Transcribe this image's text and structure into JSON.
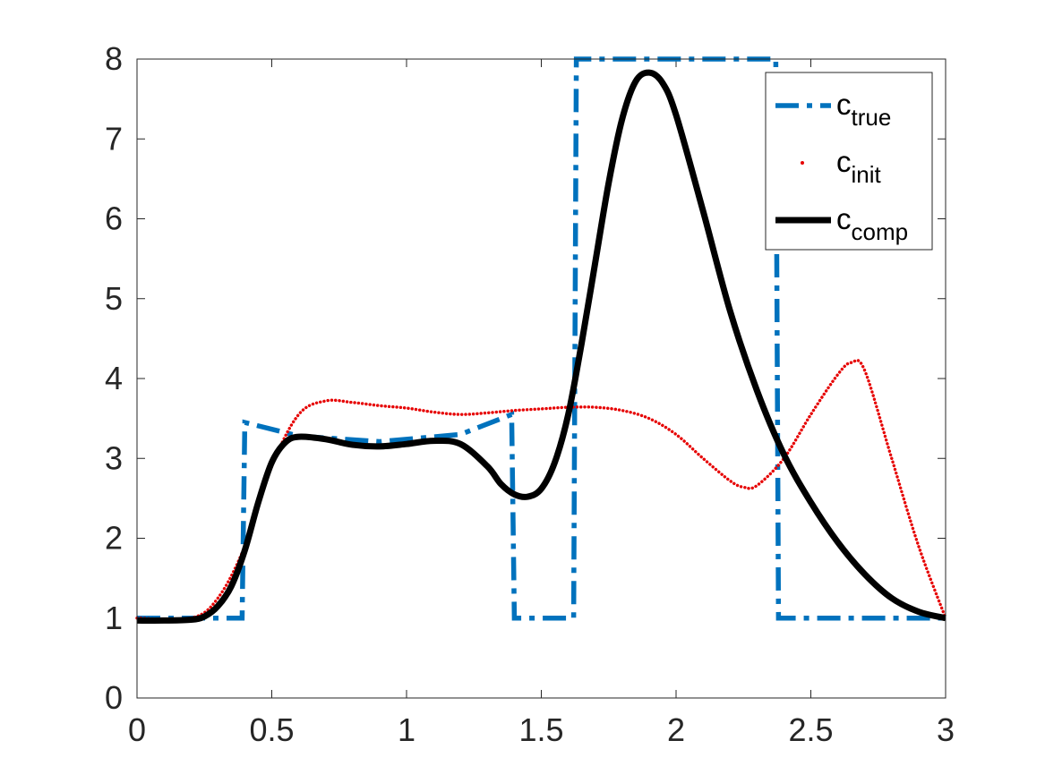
{
  "chart_data": {
    "type": "line",
    "title": "",
    "xlabel": "",
    "ylabel": "",
    "xlim": [
      0,
      3
    ],
    "ylim": [
      0,
      8
    ],
    "xticks": [
      {
        "value": 0,
        "label": "0"
      },
      {
        "value": 0.5,
        "label": "0.5"
      },
      {
        "value": 1,
        "label": "1"
      },
      {
        "value": 1.5,
        "label": "1.5"
      },
      {
        "value": 2,
        "label": "2"
      },
      {
        "value": 2.5,
        "label": "2.5"
      },
      {
        "value": 3,
        "label": "3"
      }
    ],
    "yticks": [
      {
        "value": 0,
        "label": "0"
      },
      {
        "value": 1,
        "label": "1"
      },
      {
        "value": 2,
        "label": "2"
      },
      {
        "value": 3,
        "label": "3"
      },
      {
        "value": 4,
        "label": "4"
      },
      {
        "value": 5,
        "label": "5"
      },
      {
        "value": 6,
        "label": "6"
      },
      {
        "value": 7,
        "label": "7"
      },
      {
        "value": 8,
        "label": "8"
      }
    ],
    "grid": false,
    "box": true,
    "legend_position": "top-right",
    "series": [
      {
        "name": "c_true",
        "legend_base": "c",
        "legend_sub": "true",
        "style": "dash-dot",
        "color": "#0072BD",
        "x": [
          0,
          0.39,
          0.4,
          0.6,
          0.9,
          1.2,
          1.39,
          1.4,
          1.62,
          1.63,
          2.37,
          2.38,
          3
        ],
        "y": [
          1,
          1,
          3.45,
          3.28,
          3.21,
          3.3,
          3.55,
          1,
          1,
          8,
          8,
          1,
          1
        ]
      },
      {
        "name": "c_init",
        "legend_base": "c",
        "legend_sub": "init",
        "style": "dotted",
        "color": "#E60000",
        "x": [
          0,
          0.2,
          0.3,
          0.4,
          0.5,
          0.6,
          0.7,
          0.8,
          0.9,
          1.0,
          1.1,
          1.2,
          1.3,
          1.4,
          1.5,
          1.6,
          1.7,
          1.8,
          1.9,
          2.0,
          2.1,
          2.2,
          2.25,
          2.3,
          2.4,
          2.5,
          2.6,
          2.65,
          2.7,
          2.8,
          2.9,
          3.0
        ],
        "y": [
          1,
          1,
          1.25,
          1.9,
          2.9,
          3.55,
          3.72,
          3.7,
          3.66,
          3.63,
          3.58,
          3.55,
          3.57,
          3.6,
          3.62,
          3.64,
          3.64,
          3.6,
          3.5,
          3.3,
          3.0,
          2.72,
          2.64,
          2.66,
          3.0,
          3.55,
          4.05,
          4.2,
          4.1,
          3.0,
          1.9,
          1.0
        ]
      },
      {
        "name": "c_comp",
        "legend_base": "c",
        "legend_sub": "comp",
        "style": "solid",
        "color": "#000000",
        "x": [
          0,
          0.1,
          0.2,
          0.25,
          0.3,
          0.35,
          0.4,
          0.45,
          0.5,
          0.55,
          0.6,
          0.7,
          0.8,
          0.9,
          1.0,
          1.1,
          1.2,
          1.3,
          1.35,
          1.4,
          1.45,
          1.5,
          1.55,
          1.6,
          1.65,
          1.7,
          1.75,
          1.8,
          1.85,
          1.9,
          1.95,
          2.0,
          2.1,
          2.2,
          2.3,
          2.4,
          2.5,
          2.6,
          2.7,
          2.8,
          2.9,
          3.0
        ],
        "y": [
          0.97,
          0.97,
          0.98,
          1.02,
          1.15,
          1.4,
          1.85,
          2.45,
          2.95,
          3.2,
          3.27,
          3.24,
          3.17,
          3.15,
          3.18,
          3.22,
          3.18,
          2.9,
          2.68,
          2.55,
          2.52,
          2.62,
          2.95,
          3.55,
          4.45,
          5.45,
          6.45,
          7.25,
          7.72,
          7.83,
          7.7,
          7.3,
          6.1,
          4.85,
          3.85,
          3.05,
          2.45,
          1.95,
          1.55,
          1.25,
          1.08,
          1.0
        ]
      }
    ]
  }
}
